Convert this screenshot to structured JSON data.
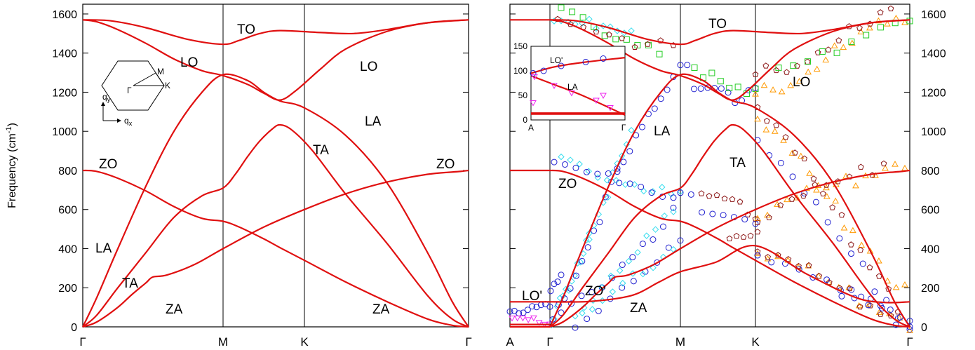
{
  "chart_data": [
    {
      "type": "line",
      "ylabel_base": "Frequency (cm",
      "ylabel_exp": "-1",
      "ylabel_close": ")",
      "ylim": [
        0,
        1650
      ],
      "yticks": [
        0,
        200,
        400,
        600,
        800,
        1000,
        1200,
        1400,
        1600
      ],
      "x_ticks": [
        "Γ",
        "M",
        "K",
        "Γ"
      ],
      "grid": false,
      "branch_labels": [
        "TO",
        "LO",
        "LO",
        "LA",
        "TA",
        "ZO",
        "ZO",
        "LA",
        "TA",
        "ZA",
        "ZA"
      ],
      "inset": {
        "gamma": "Γ",
        "m": "M",
        "k": "K",
        "qy_base": "q",
        "qy_sub": "y",
        "qx_base": "q",
        "qx_sub": "x"
      },
      "series": [
        {
          "key": "ZA",
          "points": [
            [
              0,
              0
            ],
            [
              0.1,
              25
            ],
            [
              0.25,
              100
            ],
            [
              0.35,
              165
            ],
            [
              0.45,
              225
            ],
            [
              0.5,
              255
            ],
            [
              0.6,
              265
            ],
            [
              0.8,
              320
            ],
            [
              1,
              400
            ],
            [
              1.5,
              510
            ],
            [
              2,
              600
            ],
            [
              2.5,
              680
            ],
            [
              3,
              740
            ],
            [
              3.5,
              780
            ],
            [
              3.9,
              795
            ],
            [
              4,
              800
            ]
          ]
        },
        {
          "key": "TA",
          "points": [
            [
              0,
              0
            ],
            [
              0.1,
              60
            ],
            [
              0.25,
              200
            ],
            [
              0.45,
              380
            ],
            [
              0.65,
              560
            ],
            [
              0.85,
              670
            ],
            [
              1,
              710
            ],
            [
              1.15,
              780
            ],
            [
              1.3,
              870
            ],
            [
              1.45,
              950
            ],
            [
              1.6,
              1010
            ],
            [
              1.7,
              1033
            ],
            [
              1.85,
              1005
            ],
            [
              2.1,
              900
            ],
            [
              2.5,
              680
            ],
            [
              3,
              430
            ],
            [
              3.5,
              160
            ],
            [
              3.8,
              40
            ],
            [
              4,
              0
            ]
          ]
        },
        {
          "key": "LA",
          "points": [
            [
              0,
              0
            ],
            [
              0.1,
              150
            ],
            [
              0.25,
              400
            ],
            [
              0.45,
              720
            ],
            [
              0.65,
              1000
            ],
            [
              0.85,
              1200
            ],
            [
              1,
              1290
            ],
            [
              1.3,
              1260
            ],
            [
              1.5,
              1200
            ],
            [
              1.7,
              1155
            ],
            [
              2,
              1120
            ],
            [
              2.5,
              980
            ],
            [
              3,
              740
            ],
            [
              3.5,
              380
            ],
            [
              3.8,
              130
            ],
            [
              4,
              0
            ]
          ]
        },
        {
          "key": "ZO",
          "points": [
            [
              0,
              800
            ],
            [
              0.1,
              795
            ],
            [
              0.25,
              760
            ],
            [
              0.45,
              695
            ],
            [
              0.65,
              615
            ],
            [
              0.85,
              555
            ],
            [
              1,
              540
            ],
            [
              1.2,
              510
            ],
            [
              1.5,
              450
            ],
            [
              1.7,
              405
            ],
            [
              2,
              340
            ],
            [
              2.5,
              230
            ],
            [
              3,
              130
            ],
            [
              3.5,
              40
            ],
            [
              3.8,
              8
            ],
            [
              4,
              0
            ]
          ]
        },
        {
          "key": "LO",
          "points": [
            [
              0,
              1570
            ],
            [
              0.1,
              1560
            ],
            [
              0.25,
              1520
            ],
            [
              0.45,
              1450
            ],
            [
              0.65,
              1370
            ],
            [
              0.85,
              1310
            ],
            [
              1,
              1285
            ],
            [
              1.3,
              1240
            ],
            [
              1.5,
              1195
            ],
            [
              1.7,
              1160
            ],
            [
              1.9,
              1210
            ],
            [
              2.2,
              1320
            ],
            [
              2.5,
              1420
            ],
            [
              3,
              1510
            ],
            [
              3.5,
              1555
            ],
            [
              4,
              1570
            ]
          ]
        },
        {
          "key": "TO",
          "points": [
            [
              0,
              1570
            ],
            [
              0.2,
              1565
            ],
            [
              0.45,
              1530
            ],
            [
              0.75,
              1470
            ],
            [
              1,
              1445
            ],
            [
              1.2,
              1465
            ],
            [
              1.45,
              1500
            ],
            [
              1.7,
              1515
            ],
            [
              2.2,
              1505
            ],
            [
              2.6,
              1500
            ],
            [
              3,
              1520
            ],
            [
              3.5,
              1555
            ],
            [
              4,
              1570
            ]
          ]
        }
      ]
    },
    {
      "type": "scatter",
      "ylim": [
        0,
        1650
      ],
      "yticks": [
        0,
        200,
        400,
        600,
        800,
        1000,
        1200,
        1400,
        1600
      ],
      "x_ticks": [
        "A",
        "Γ",
        "M",
        "K",
        "Γ"
      ],
      "grid": false,
      "branch_labels": [
        "TO",
        "LO",
        "LA",
        "TA",
        "ZO",
        "ZO'",
        "ZA",
        "LO'"
      ],
      "inset": {
        "ylim": [
          0,
          150
        ],
        "yticks": [
          0,
          50,
          100,
          150
        ],
        "x_ticks": [
          "A",
          "Γ"
        ],
        "labels": [
          "LO'",
          "LA"
        ]
      },
      "markers": {
        "blue_circle": "#1f1fcf",
        "cyan_diamond": "#33ddee",
        "green_square": "#22cc22",
        "orange_triangle": "#ff9900",
        "brown_pentagon": "#8b1515",
        "magenta_triangle": "#ee22ee"
      }
    }
  ]
}
